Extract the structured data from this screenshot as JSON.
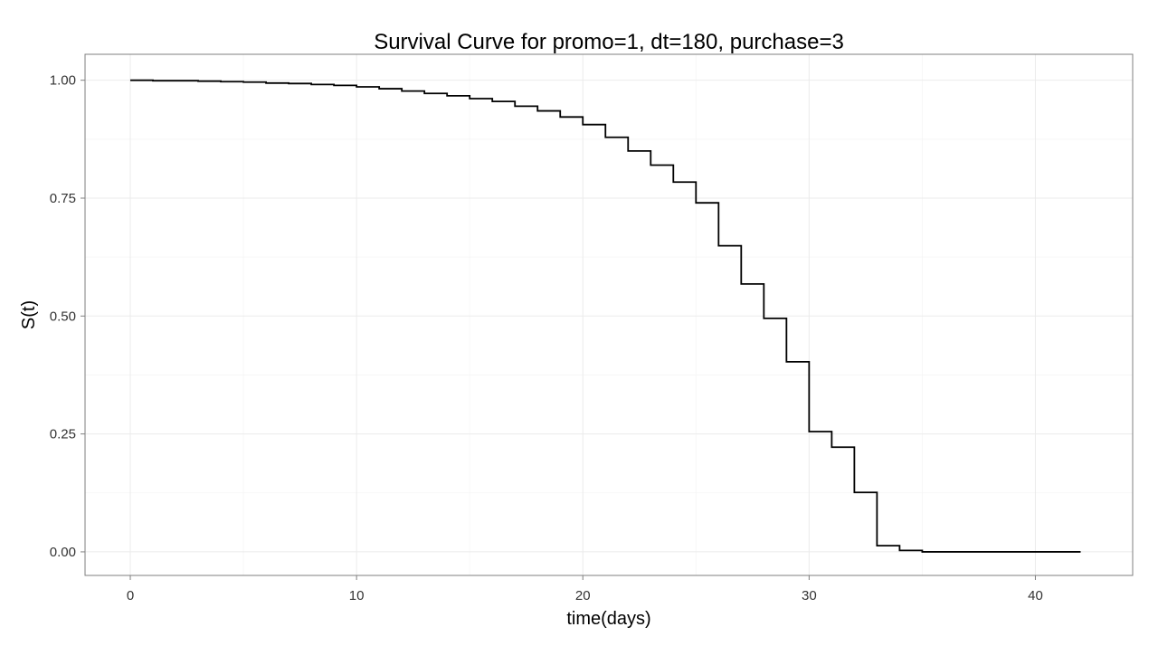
{
  "chart_data": {
    "type": "line",
    "step": true,
    "title": "Survival Curve for promo=1, dt=180, purchase=3",
    "xlabel": "time(days)",
    "ylabel": "S(t)",
    "xlim": [
      -2,
      44.3
    ],
    "ylim": [
      -0.05,
      1.055
    ],
    "x_ticks": [
      0,
      10,
      20,
      30,
      40
    ],
    "x_tick_labels": [
      "0",
      "10",
      "20",
      "30",
      "40"
    ],
    "y_ticks": [
      0,
      0.25,
      0.5,
      0.75,
      1
    ],
    "y_tick_labels": [
      "0.00",
      "0.25",
      "0.50",
      "0.75",
      "1.00"
    ],
    "grid": true,
    "legend": "none",
    "line_color": "#000000",
    "series": [
      {
        "x": [
          0,
          1,
          2,
          3,
          4,
          5,
          6,
          7,
          8,
          9,
          10,
          11,
          12,
          13,
          14,
          15,
          16,
          17,
          18,
          19,
          20,
          21,
          22,
          23,
          24,
          25,
          26,
          27,
          28,
          29,
          30,
          31,
          32,
          33,
          34,
          35,
          42
        ],
        "y": [
          1.0,
          0.999,
          0.999,
          0.998,
          0.997,
          0.996,
          0.994,
          0.993,
          0.991,
          0.989,
          0.986,
          0.982,
          0.977,
          0.972,
          0.967,
          0.961,
          0.955,
          0.945,
          0.935,
          0.922,
          0.906,
          0.879,
          0.85,
          0.82,
          0.784,
          0.74,
          0.649,
          0.568,
          0.495,
          0.403,
          0.255,
          0.222,
          0.126,
          0.013,
          0.003,
          0.0,
          0.0
        ]
      }
    ]
  }
}
